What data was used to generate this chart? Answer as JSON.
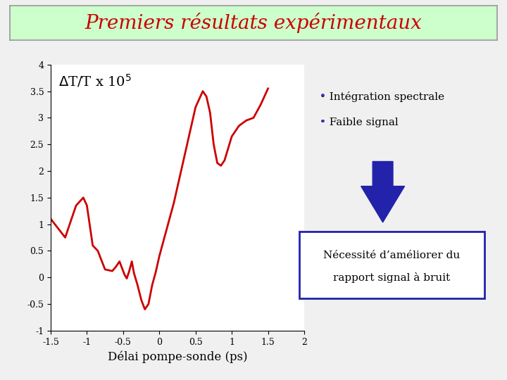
{
  "title": "Premiers résultats expérimentaux",
  "title_color": "#cc0000",
  "title_bg_color": "#ccffcc",
  "title_border_color": "#999999",
  "background_color": "#f0f0f0",
  "plot_bg_color": "#ffffff",
  "xlabel": "Délai pompe-sonde (ps)",
  "xlim": [
    -1.5,
    2.0
  ],
  "ylim": [
    -1.0,
    4.0
  ],
  "xticks": [
    -1.5,
    -1.0,
    -0.5,
    0.0,
    0.5,
    1.0,
    1.5,
    2.0
  ],
  "yticks": [
    -1.0,
    -0.5,
    0.0,
    0.5,
    1.0,
    1.5,
    2.0,
    2.5,
    3.0,
    3.5,
    4.0
  ],
  "line_color": "#cc0000",
  "line_width": 2.0,
  "x_data": [
    -1.5,
    -1.3,
    -1.15,
    -1.05,
    -1.0,
    -0.92,
    -0.85,
    -0.75,
    -0.65,
    -0.6,
    -0.55,
    -0.5,
    -0.48,
    -0.45,
    -0.42,
    -0.38,
    -0.35,
    -0.3,
    -0.25,
    -0.2,
    -0.15,
    -0.1,
    -0.05,
    0.0,
    0.1,
    0.2,
    0.3,
    0.4,
    0.5,
    0.6,
    0.65,
    0.7,
    0.75,
    0.8,
    0.85,
    0.9,
    1.0,
    1.1,
    1.2,
    1.3,
    1.4,
    1.5
  ],
  "y_data": [
    1.1,
    0.75,
    1.35,
    1.5,
    1.35,
    0.6,
    0.5,
    0.15,
    0.12,
    0.2,
    0.3,
    0.12,
    0.05,
    -0.02,
    0.1,
    0.3,
    0.08,
    -0.15,
    -0.42,
    -0.6,
    -0.5,
    -0.15,
    0.1,
    0.4,
    0.9,
    1.4,
    2.0,
    2.6,
    3.2,
    3.5,
    3.4,
    3.1,
    2.5,
    2.15,
    2.1,
    2.2,
    2.65,
    2.85,
    2.95,
    3.0,
    3.25,
    3.55
  ],
  "bullet_color": "#3333cc",
  "bullet1": "Intégration spectrale",
  "bullet2": "Faible signal",
  "arrow_color": "#2222aa",
  "box_text1": "Nécessité d’améliorer du",
  "box_text2": "rapport signal à bruit",
  "box_color": "#2222aa"
}
